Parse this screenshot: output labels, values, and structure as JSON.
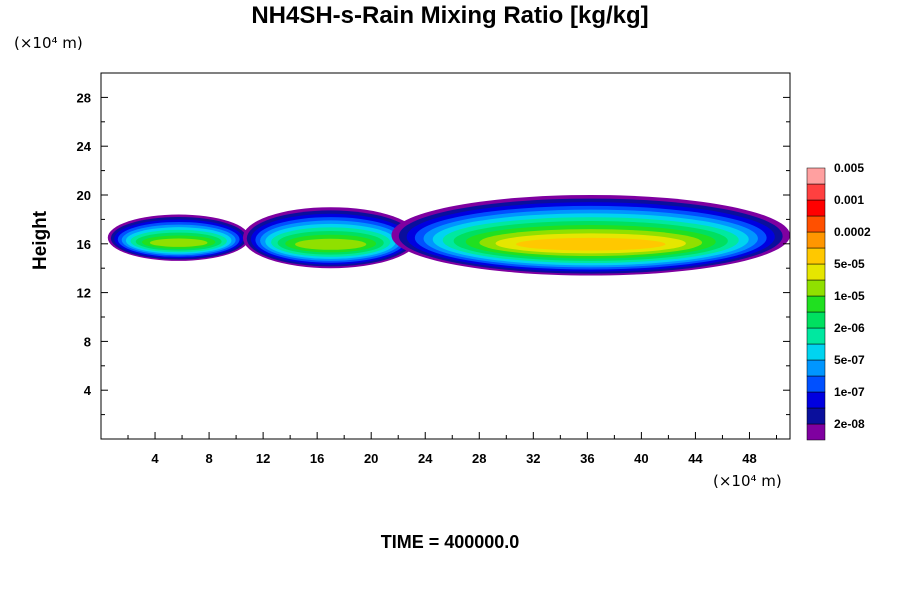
{
  "chart_data": {
    "type": "heatmap",
    "title": "NH4SH-s-Rain Mixing Ratio [kg/kg]",
    "x_unit": "(×10⁴ m)",
    "y_unit": "(×10⁴ m)",
    "xlabel": "",
    "ylabel": "Height",
    "xlim": [
      0,
      51
    ],
    "ylim": [
      0,
      30
    ],
    "x_ticks": [
      "4",
      "8",
      "12",
      "16",
      "20",
      "24",
      "28",
      "32",
      "36",
      "40",
      "44",
      "48"
    ],
    "y_ticks": [
      "4",
      "8",
      "12",
      "16",
      "20",
      "24",
      "28"
    ],
    "colorbar": {
      "colors": [
        "#7f00a0",
        "#0a0f9c",
        "#0000e0",
        "#0050ff",
        "#0096ff",
        "#00d4f0",
        "#00e8a0",
        "#00e060",
        "#20e020",
        "#90e000",
        "#e6e600",
        "#ffc800",
        "#ff9600",
        "#ff5000",
        "#ff0000",
        "#ff4040",
        "#ffa0a0"
      ],
      "labels": [
        "2e-08",
        "1e-07",
        "5e-07",
        "2e-06",
        "1e-05",
        "5e-05",
        "0.0002",
        "0.001",
        "0.005"
      ]
    },
    "clouds": [
      {
        "x": [
          0.5,
          11
        ],
        "y_base": 14.6,
        "y_top": 18.4,
        "max_level": 9
      },
      {
        "x": [
          10.5,
          23.5
        ],
        "y_base": 14.0,
        "y_top": 19.0,
        "max_level": 9
      },
      {
        "x": [
          21.5,
          51
        ],
        "y_base": 13.4,
        "y_top": 20.0,
        "max_level": 11
      }
    ]
  },
  "footer": "TIME = 400000.0"
}
